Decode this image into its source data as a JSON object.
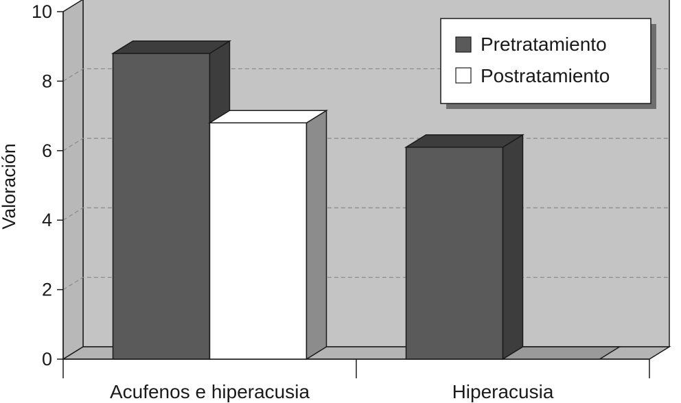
{
  "chart_data": {
    "type": "bar",
    "title": "",
    "xlabel": "",
    "ylabel": "Valoración",
    "ylim": [
      0,
      10
    ],
    "yticks": [
      0,
      2,
      4,
      6,
      8,
      10
    ],
    "categories": [
      "Acufenos e hiperacusia",
      "Hiperacusia"
    ],
    "series": [
      {
        "name": "Pretratamiento",
        "values": [
          8.8,
          6.1
        ],
        "color": "#5a5a5a"
      },
      {
        "name": "Postratamiento",
        "values": [
          6.8,
          0
        ],
        "color": "#ffffff"
      }
    ],
    "grid": true,
    "legend_position": "top-right",
    "colors": {
      "wall": "#c4c4c4",
      "floor": "#b4b4b4",
      "grid": "#8c8c8c",
      "outline": "#1a1a1a"
    }
  }
}
